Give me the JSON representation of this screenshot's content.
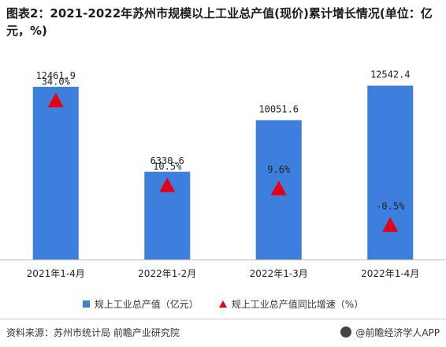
{
  "title": "图表2：2021-2022年苏州市规模以上工业总产值(现价)累计增长情况(单位：亿元，%)",
  "chart_data": {
    "type": "bar",
    "categories": [
      "2021年1-4月",
      "2022年1-2月",
      "2022年1-3月",
      "2022年1-4月"
    ],
    "series": [
      {
        "name": "规上工业总产值（亿元）",
        "type": "bar",
        "values": [
          12461.9,
          6330.6,
          10051.6,
          12542.4
        ]
      },
      {
        "name": "规上工业总产值同比增速（%）",
        "type": "marker",
        "values": [
          34.0,
          10.5,
          9.6,
          -0.5
        ]
      }
    ],
    "value_labels": [
      "12461.9",
      "6330.6",
      "10051.6",
      "12542.4"
    ],
    "rate_labels": [
      "34.0%",
      "10.5%",
      "9.6%",
      "-0.5%"
    ],
    "bar_ylim": [
      0,
      14000
    ],
    "rate_ylim": [
      -5,
      40
    ],
    "legend_position": "bottom",
    "grid": false
  },
  "colors": {
    "bar": "#3d7fdc",
    "marker": "#e60012",
    "axis": "#bdbdbd"
  },
  "legend": {
    "bar_label": "规上工业总产值（亿元）",
    "marker_label": "规上工业总产值同比增速（%）"
  },
  "footer": {
    "source": "资料来源：苏州市统计局 前瞻产业研究院",
    "brand": "@前瞻经济学人APP",
    "brand_icon": "qianzhan-logo-icon"
  }
}
